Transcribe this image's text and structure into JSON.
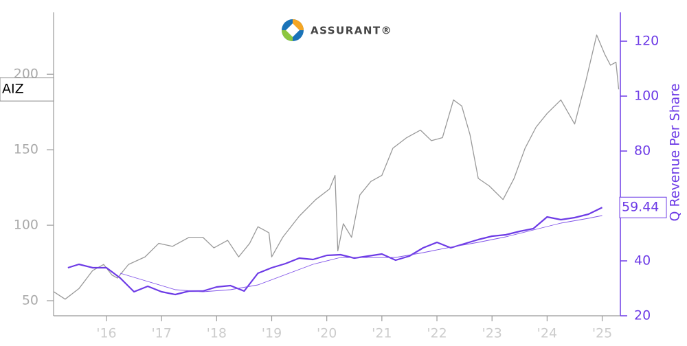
{
  "chart_data": {
    "type": "line",
    "logo": "ASSURANT®",
    "y2_label": "Q Revenue Per Share",
    "xlim": [
      2015.04,
      2025.33
    ],
    "xticks": [
      {
        "value": 2016,
        "label": "'16"
      },
      {
        "value": 2017,
        "label": "'17"
      },
      {
        "value": 2018,
        "label": "'18"
      },
      {
        "value": 2019,
        "label": "'19"
      },
      {
        "value": 2020,
        "label": "'20"
      },
      {
        "value": 2021,
        "label": "'21"
      },
      {
        "value": 2022,
        "label": "'22"
      },
      {
        "value": 2023,
        "label": "'23"
      },
      {
        "value": 2024,
        "label": "'24"
      },
      {
        "value": 2025,
        "label": "'25"
      }
    ],
    "ylim": [
      40,
      241
    ],
    "yticks": [
      50,
      100,
      150,
      200
    ],
    "y2lim": [
      20,
      130.5
    ],
    "y2ticks": [
      20,
      40,
      60,
      80,
      100,
      120
    ],
    "series": [
      {
        "name": "AIZ",
        "color": "#999999",
        "axis": "y",
        "x": [
          2015.04,
          2015.25,
          2015.5,
          2015.75,
          2015.95,
          2016.1,
          2016.2,
          2016.4,
          2016.7,
          2016.95,
          2017.2,
          2017.5,
          2017.75,
          2017.95,
          2018.2,
          2018.4,
          2018.6,
          2018.75,
          2018.95,
          2019.0,
          2019.2,
          2019.5,
          2019.8,
          2020.05,
          2020.15,
          2020.2,
          2020.3,
          2020.45,
          2020.6,
          2020.8,
          2021.0,
          2021.2,
          2021.45,
          2021.7,
          2021.9,
          2022.1,
          2022.3,
          2022.45,
          2022.6,
          2022.75,
          2022.95,
          2023.2,
          2023.4,
          2023.6,
          2023.8,
          2024.0,
          2024.25,
          2024.5,
          2024.7,
          2024.9,
          2025.05,
          2025.15,
          2025.25,
          2025.3
        ],
        "values": [
          56,
          51,
          58,
          70,
          74,
          67,
          65,
          74,
          79,
          88,
          86,
          92,
          92,
          85,
          90,
          79,
          88,
          99,
          95,
          79,
          92,
          106,
          117,
          124,
          133,
          83,
          101,
          92,
          120,
          129,
          133,
          151,
          158,
          163,
          156,
          158,
          183,
          179,
          160,
          131,
          126,
          117,
          131,
          151,
          165,
          174,
          183,
          167,
          195,
          226,
          213,
          206,
          208,
          190
        ]
      },
      {
        "color": "#6d3be6",
        "axis": "y2",
        "width": 2.2,
        "x": [
          2015.3,
          2015.5,
          2015.75,
          2016.0,
          2016.25,
          2016.5,
          2016.75,
          2017.0,
          2017.25,
          2017.5,
          2017.75,
          2018.0,
          2018.25,
          2018.5,
          2018.75,
          2019.0,
          2019.25,
          2019.5,
          2019.75,
          2020.0,
          2020.25,
          2020.5,
          2020.75,
          2021.0,
          2021.25,
          2021.5,
          2021.75,
          2022.0,
          2022.25,
          2022.5,
          2022.75,
          2023.0,
          2023.25,
          2023.5,
          2023.75,
          2024.0,
          2024.25,
          2024.5,
          2024.75,
          2025.0
        ],
        "values": [
          37.5,
          38.75,
          37.5,
          37.5,
          33.75,
          28.75,
          30.75,
          28.75,
          27.75,
          29,
          29,
          30.5,
          31,
          29,
          35.5,
          37.5,
          39,
          41,
          40.5,
          42,
          42.25,
          41,
          41.75,
          42.5,
          40.25,
          41.75,
          44.75,
          46.75,
          44.75,
          46.25,
          47.75,
          49,
          49.5,
          50.75,
          51.75,
          56,
          55,
          55.75,
          57,
          59.44
        ]
      },
      {
        "color": "#7d4ee8",
        "axis": "y2",
        "width": 0.9,
        "x": [
          2016.25,
          2016.75,
          2017.25,
          2017.75,
          2018.25,
          2018.75,
          2019.25,
          2019.75,
          2020.25,
          2020.75,
          2021.25,
          2021.75,
          2022.25,
          2022.75,
          2023.25,
          2023.75,
          2024.25,
          2024.75,
          2025.0
        ],
        "values": [
          35.5,
          32.5,
          29.5,
          28.75,
          29.5,
          31.25,
          35,
          38.75,
          41.25,
          41.25,
          41.25,
          43,
          45,
          46.75,
          48.75,
          51.25,
          53.75,
          55.5,
          56.5
        ]
      }
    ]
  }
}
